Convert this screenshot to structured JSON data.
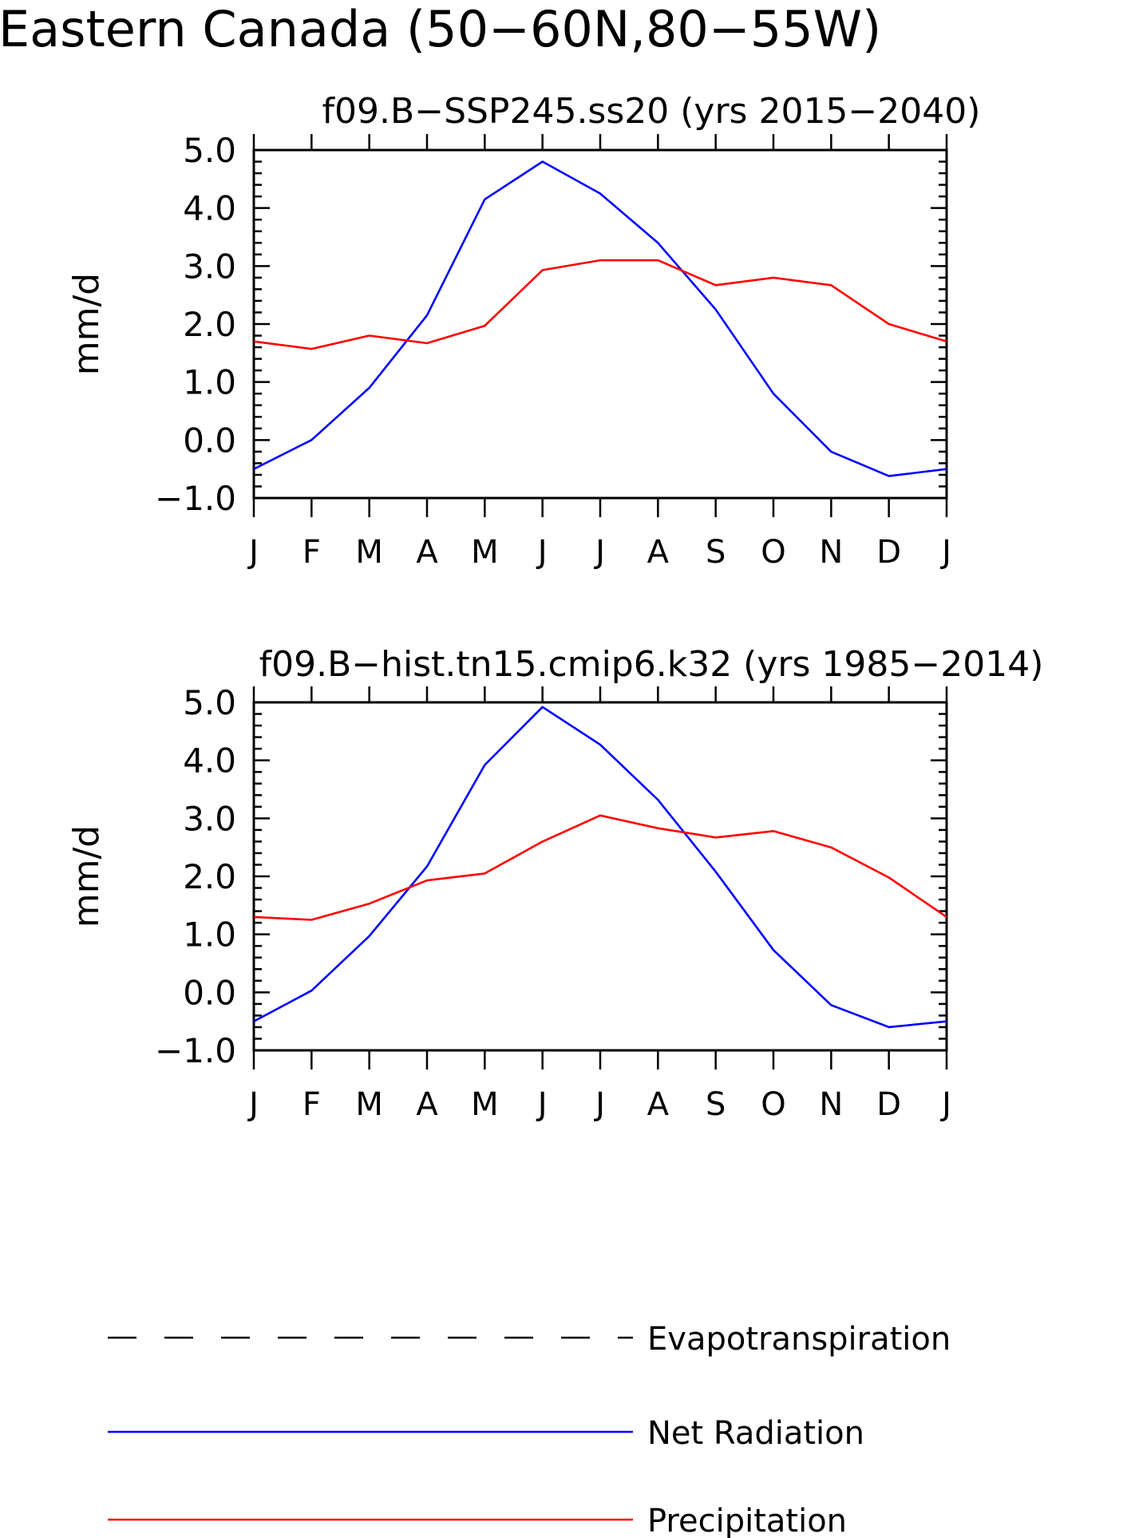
{
  "figure": {
    "title": "Eastern Canada (50-60N,80-55W)"
  },
  "colors": {
    "net_radiation": "#0000ff",
    "precipitation": "#ff0000",
    "evapotranspiration": "#000000",
    "axes": "#000000"
  },
  "legend": {
    "position": "bottom",
    "items": [
      {
        "key": "evapotranspiration",
        "label": "Evapotranspiration",
        "style": "dashed"
      },
      {
        "key": "net_radiation",
        "label": "Net Radiation",
        "style": "solid"
      },
      {
        "key": "precipitation",
        "label": "Precipitation",
        "style": "solid"
      }
    ]
  },
  "chart_data": [
    {
      "type": "line",
      "title": "f09.B-SSP245.ss20 (yrs 2015-2040)",
      "xlabel": "",
      "ylabel": "mm/d",
      "categories": [
        "J",
        "F",
        "M",
        "A",
        "M",
        "J",
        "J",
        "A",
        "S",
        "O",
        "N",
        "D",
        "J"
      ],
      "ylim": [
        -1.0,
        5.0
      ],
      "yticks": [
        "-1.0",
        "0.0",
        "1.0",
        "2.0",
        "3.0",
        "4.0",
        "5.0"
      ],
      "grid": false,
      "series": [
        {
          "name": "Net Radiation",
          "key": "net_radiation",
          "values": [
            -0.5,
            0.0,
            0.9,
            2.15,
            4.15,
            4.8,
            4.25,
            3.4,
            2.25,
            0.8,
            -0.2,
            -0.62,
            -0.5
          ]
        },
        {
          "name": "Precipitation",
          "key": "precipitation",
          "values": [
            1.7,
            1.57,
            1.8,
            1.67,
            1.97,
            2.93,
            3.1,
            3.1,
            2.67,
            2.8,
            2.67,
            2.0,
            1.7
          ]
        }
      ]
    },
    {
      "type": "line",
      "title": "f09.B-hist.tn15.cmip6.k32 (yrs 1985-2014)",
      "xlabel": "",
      "ylabel": "mm/d",
      "categories": [
        "J",
        "F",
        "M",
        "A",
        "M",
        "J",
        "J",
        "A",
        "S",
        "O",
        "N",
        "D",
        "J"
      ],
      "ylim": [
        -1.0,
        5.0
      ],
      "yticks": [
        "-1.0",
        "0.0",
        "1.0",
        "2.0",
        "3.0",
        "4.0",
        "5.0"
      ],
      "grid": false,
      "series": [
        {
          "name": "Net Radiation",
          "key": "net_radiation",
          "values": [
            -0.5,
            0.03,
            0.97,
            2.17,
            3.92,
            4.92,
            4.27,
            3.32,
            2.08,
            0.73,
            -0.22,
            -0.6,
            -0.5
          ]
        },
        {
          "name": "Precipitation",
          "key": "precipitation",
          "values": [
            1.3,
            1.25,
            1.53,
            1.93,
            2.05,
            2.6,
            3.05,
            2.83,
            2.67,
            2.78,
            2.5,
            1.98,
            1.3
          ]
        }
      ]
    }
  ]
}
